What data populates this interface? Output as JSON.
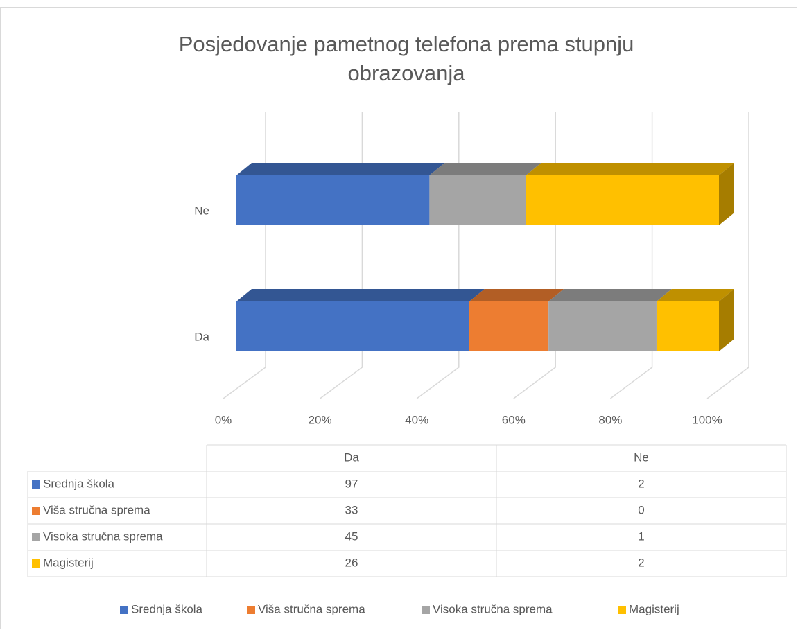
{
  "chart_data": {
    "type": "bar",
    "orientation": "horizontal",
    "stacking": "percent",
    "title": "Posjedovanje pametnog telefona prema stupnju obrazovanja",
    "categories": [
      "Da",
      "Ne"
    ],
    "series": [
      {
        "name": "Srednja škola",
        "color": "#4472c4",
        "values": [
          97,
          2
        ]
      },
      {
        "name": "Viša stručna sprema",
        "color": "#ed7d31",
        "values": [
          33,
          0
        ]
      },
      {
        "name": "Visoka stručna sprema",
        "color": "#a5a5a5",
        "values": [
          45,
          1
        ]
      },
      {
        "name": "Magisterij",
        "color": "#ffc000",
        "values": [
          26,
          2
        ]
      }
    ],
    "xlim": [
      0,
      100
    ],
    "xticks": [
      {
        "value": 0,
        "label": "0%"
      },
      {
        "value": 20,
        "label": "20%"
      },
      {
        "value": 40,
        "label": "40%"
      },
      {
        "value": 60,
        "label": "60%"
      },
      {
        "value": 80,
        "label": "80%"
      },
      {
        "value": 100,
        "label": "100%"
      }
    ],
    "grid": true,
    "legend": "bottom",
    "data_table": true
  }
}
